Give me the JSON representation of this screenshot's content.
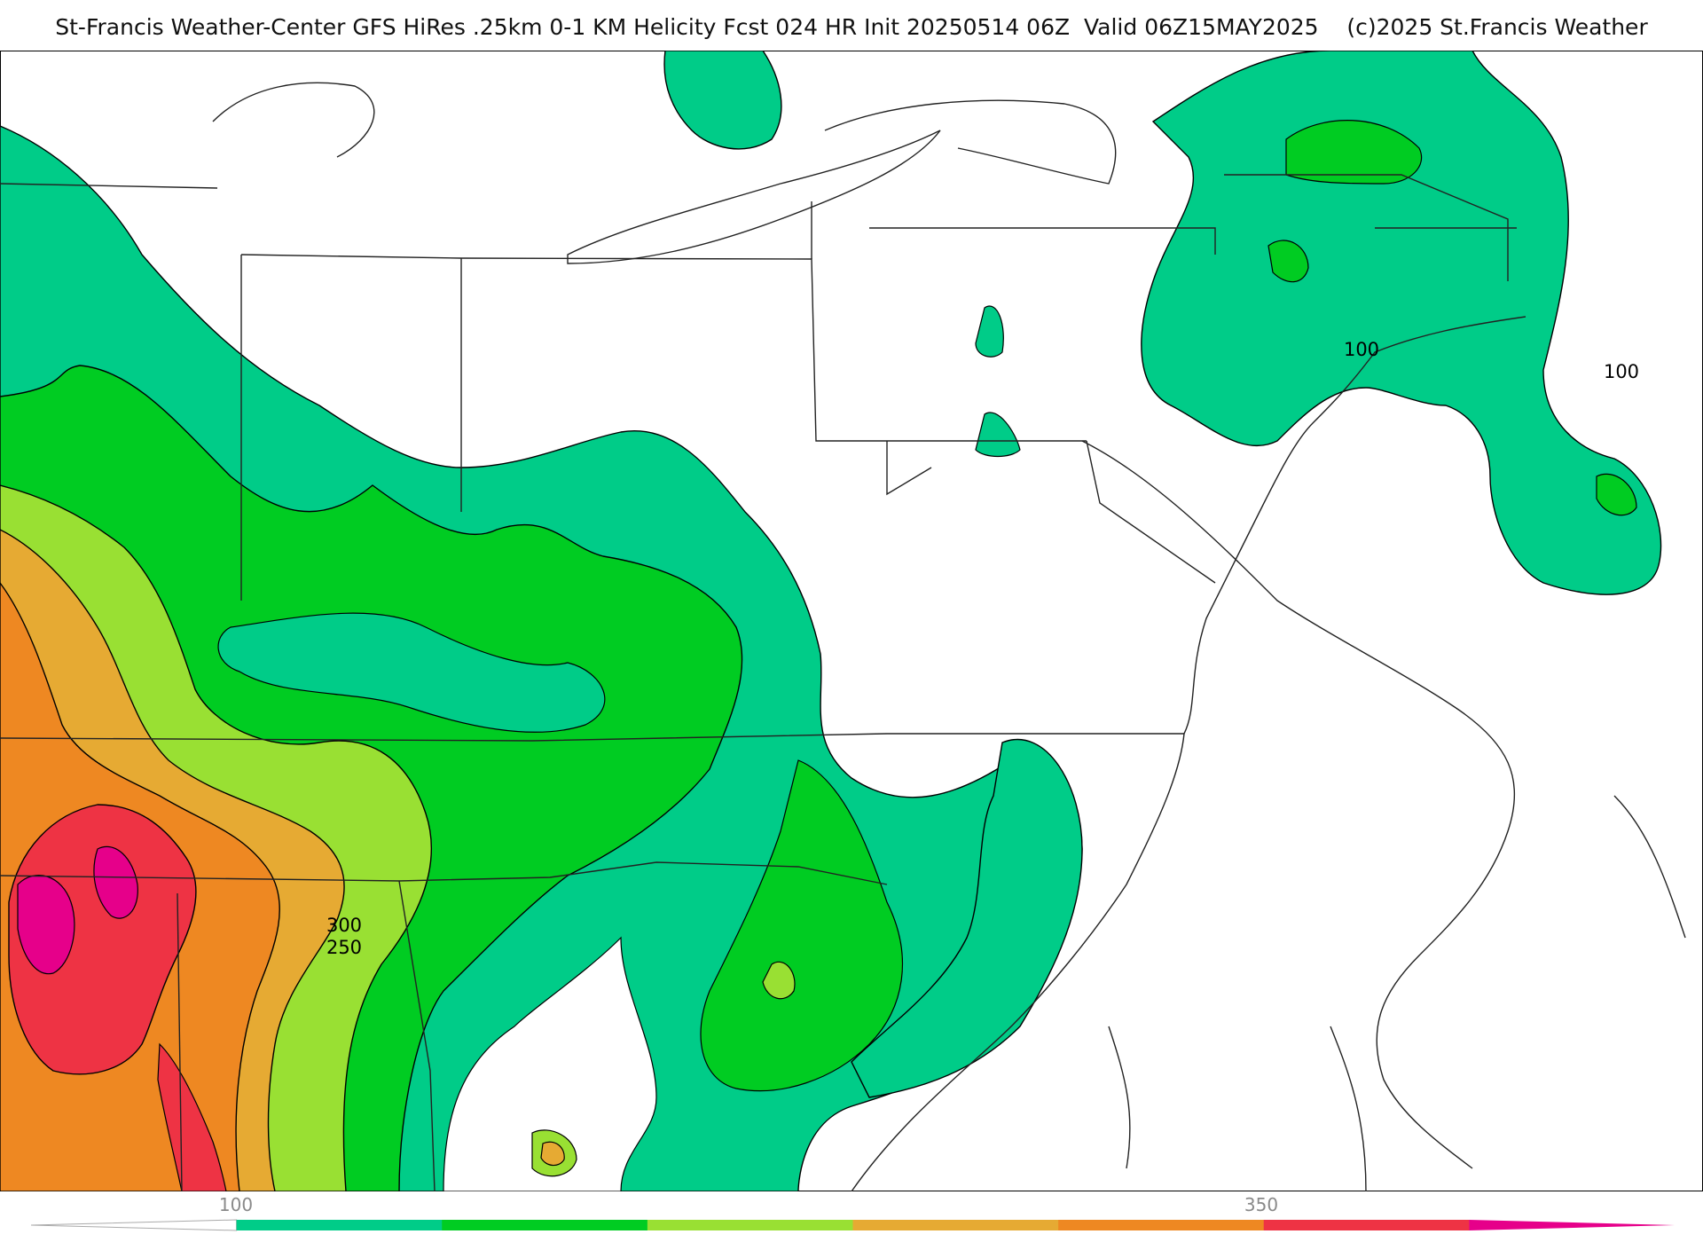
{
  "header": {
    "title": "St-Francis Weather-Center GFS HiRes .25km 0-1 KM Helicity Fcst 024 HR Init 20250514 06Z  Valid 06Z15MAY2025    (c)2025 St.Francis Weather"
  },
  "map": {
    "contour_labels": [
      "100",
      "100",
      "300",
      "250"
    ]
  },
  "colorbar": {
    "tick_labels": [
      "100",
      "350"
    ],
    "colors": [
      "#ffffff",
      "#00cc88",
      "#00cc22",
      "#99e033",
      "#e6aa33",
      "#ee8822",
      "#ee3344",
      "#e6008a"
    ],
    "bins": [
      50,
      100,
      150,
      200,
      250,
      300,
      350,
      400
    ]
  }
}
